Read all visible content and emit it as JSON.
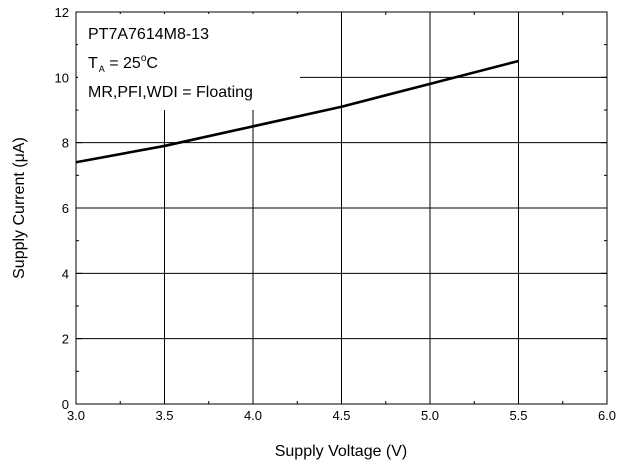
{
  "chart_data": {
    "type": "line",
    "xlabel": "Supply Voltage (V)",
    "ylabel": "Supply Current (μA)",
    "xlim": [
      3.0,
      6.0
    ],
    "ylim": [
      0,
      12
    ],
    "x_ticks": [
      3.0,
      3.5,
      4.0,
      4.5,
      5.0,
      5.5,
      6.0
    ],
    "x_tick_labels": [
      "3.0",
      "3.5",
      "4.0",
      "4.5",
      "5.0",
      "5.5",
      "6.0"
    ],
    "y_ticks": [
      0,
      2,
      4,
      6,
      8,
      10,
      12
    ],
    "y_tick_labels": [
      "0",
      "2",
      "4",
      "6",
      "8",
      "10",
      "12"
    ],
    "grid": true,
    "series": [
      {
        "x": [
          3.0,
          3.5,
          4.0,
          4.5,
          5.0,
          5.5
        ],
        "y": [
          7.4,
          7.9,
          8.5,
          9.1,
          9.8,
          10.5
        ]
      }
    ],
    "annotations": {
      "device": "PT7A7614M8-13",
      "temp_prefix": "T",
      "temp_subscript": "A",
      "temp_value": " = 25",
      "temp_degree": "o",
      "temp_unit": "C",
      "conditions": "MR,PFI,WDI = Floating"
    },
    "colors": {
      "line": "#000000",
      "grid": "#000000",
      "background": "#ffffff"
    }
  }
}
